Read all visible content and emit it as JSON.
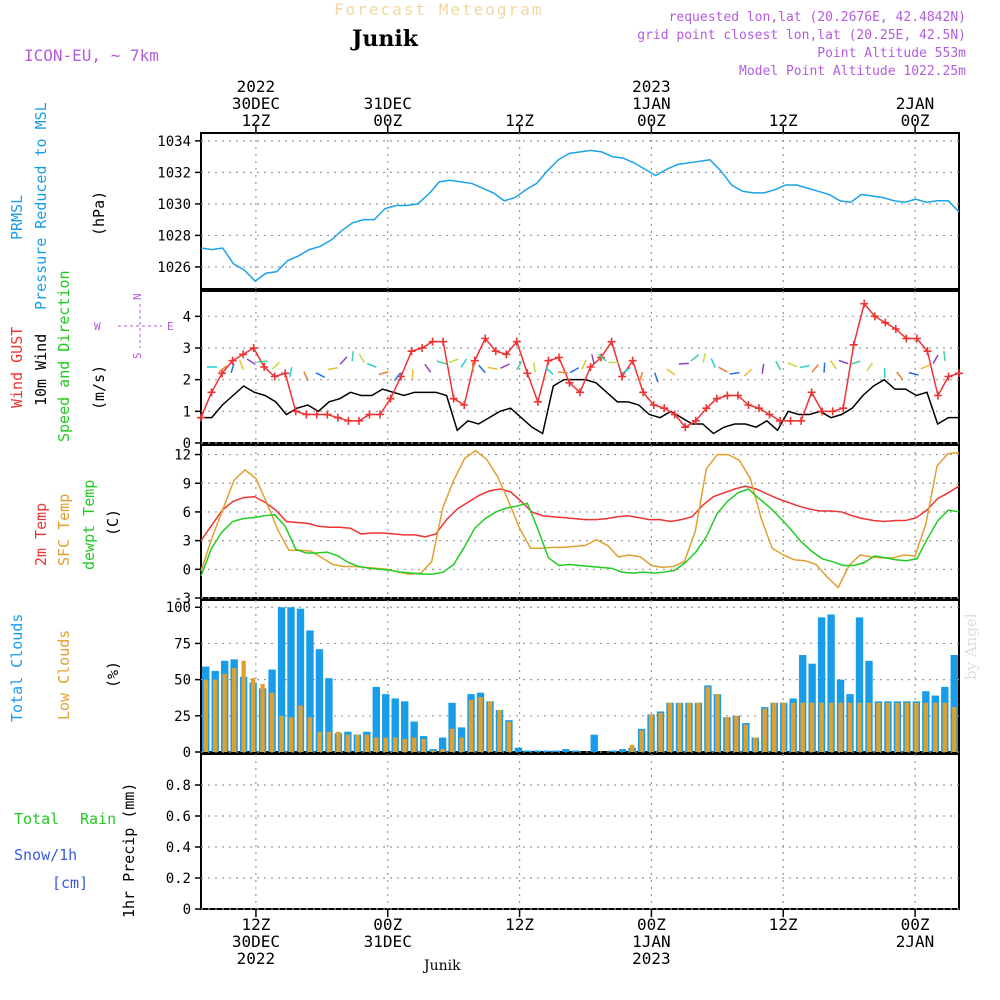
{
  "header": {
    "title": "Forecast Meteogram",
    "location": "Junik",
    "model": "ICON-EU, ~ 7km",
    "requested": "requested lon,lat (20.2676E, 42.4842N)",
    "gridpoint": "grid point closest lon,lat (20.25E, 42.5N)",
    "point_alt": "Point Altitude 553m",
    "model_alt": "Model Point Altitude 1022.25m",
    "credit": "by Angel",
    "footer": "Junik"
  },
  "time_axis": {
    "start_hour": 0,
    "end_hour": 69,
    "top_labels": [
      {
        "h": 5,
        "lines": [
          "2022",
          "30DEC",
          "12Z"
        ]
      },
      {
        "h": 17,
        "lines": [
          "31DEC",
          "00Z"
        ]
      },
      {
        "h": 29,
        "lines": [
          "12Z"
        ]
      },
      {
        "h": 41,
        "lines": [
          "2023",
          "1JAN",
          "00Z"
        ]
      },
      {
        "h": 53,
        "lines": [
          "12Z"
        ]
      },
      {
        "h": 65,
        "lines": [
          "2JAN",
          "00Z"
        ]
      }
    ],
    "bottom_labels": [
      {
        "h": 5,
        "lines": [
          "12Z",
          "30DEC",
          "2022"
        ]
      },
      {
        "h": 17,
        "lines": [
          "00Z",
          "31DEC"
        ]
      },
      {
        "h": 29,
        "lines": [
          "12Z"
        ]
      },
      {
        "h": 41,
        "lines": [
          "00Z",
          "1JAN",
          "2023"
        ]
      },
      {
        "h": 53,
        "lines": [
          "12Z"
        ]
      },
      {
        "h": 65,
        "lines": [
          "00Z",
          "2JAN"
        ]
      }
    ]
  },
  "chart_data": [
    {
      "type": "line",
      "id": "pressure",
      "side_labels": {
        "variable": "PRMSL",
        "description": "Pressure Reduced to MSL",
        "unit": "(hPa)"
      },
      "ylim": [
        1024.6,
        1034.5
      ],
      "yticks": [
        1026,
        1028,
        1030,
        1032,
        1034
      ],
      "series": [
        {
          "name": "PRMSL",
          "color": "#1aa3e8",
          "values": [
            1027.2,
            1027.1,
            1027.2,
            1026.2,
            1025.8,
            1025.1,
            1025.6,
            1025.7,
            1026.4,
            1026.7,
            1027.1,
            1027.3,
            1027.7,
            1028.3,
            1028.8,
            1029.0,
            1029.0,
            1029.7,
            1029.9,
            1029.9,
            1030.0,
            1030.6,
            1031.4,
            1031.5,
            1031.4,
            1031.3,
            1031.0,
            1030.7,
            1030.2,
            1030.4,
            1030.9,
            1031.3,
            1032.1,
            1032.8,
            1033.2,
            1033.3,
            1033.4,
            1033.3,
            1033.0,
            1032.9,
            1032.6,
            1032.2,
            1031.8,
            1032.2,
            1032.5,
            1032.6,
            1032.7,
            1032.8,
            1032.1,
            1031.2,
            1030.8,
            1030.7,
            1030.7,
            1030.9,
            1031.2,
            1031.2,
            1031.0,
            1030.8,
            1030.6,
            1030.2,
            1030.1,
            1030.6,
            1030.5,
            1030.4,
            1030.2,
            1030.1,
            1030.3,
            1030.1,
            1030.2,
            1030.2,
            1029.5
          ]
        }
      ]
    },
    {
      "type": "line",
      "id": "wind",
      "side_labels": {
        "gust": "Wind GUST",
        "wind": "10m Wind",
        "speed_dir": "Speed and Direction",
        "unit": "(m/s)",
        "compass": {
          "n": "N",
          "s": "S",
          "w": "W",
          "e": "E"
        }
      },
      "ylim": [
        0,
        4.8
      ],
      "yticks": [
        0,
        1,
        2,
        3,
        4
      ],
      "series": [
        {
          "name": "10m Wind",
          "color": "#000000",
          "values": [
            0.8,
            0.8,
            1.2,
            1.5,
            1.8,
            1.6,
            1.5,
            1.3,
            0.9,
            1.1,
            1.2,
            1.0,
            1.3,
            1.4,
            1.6,
            1.5,
            1.5,
            1.7,
            1.6,
            1.5,
            1.6,
            1.6,
            1.6,
            1.5,
            0.4,
            0.7,
            0.6,
            0.8,
            1.0,
            1.1,
            0.8,
            0.5,
            0.3,
            1.8,
            2.0,
            2.0,
            2.0,
            1.9,
            1.6,
            1.3,
            1.3,
            1.2,
            0.9,
            0.8,
            1.0,
            0.8,
            0.6,
            0.6,
            0.3,
            0.5,
            0.6,
            0.6,
            0.5,
            0.7,
            0.4,
            1.0,
            0.9,
            0.9,
            1.0,
            0.8,
            0.9,
            1.1,
            1.5,
            1.8,
            2.0,
            1.7,
            1.7,
            1.5,
            1.6,
            0.6,
            0.8,
            0.8
          ]
        },
        {
          "name": "Wind GUST",
          "color": "#ee3333",
          "values": [
            0.8,
            1.6,
            2.2,
            2.6,
            2.8,
            3.0,
            2.4,
            2.1,
            2.2,
            1.0,
            0.9,
            0.9,
            0.9,
            0.8,
            0.7,
            0.7,
            0.9,
            0.9,
            1.4,
            2.1,
            2.9,
            3.0,
            3.2,
            3.2,
            1.4,
            1.2,
            2.6,
            3.3,
            2.9,
            2.8,
            3.2,
            2.2,
            1.3,
            2.6,
            2.7,
            1.9,
            1.6,
            2.4,
            2.7,
            3.2,
            2.1,
            2.6,
            1.6,
            1.2,
            1.1,
            0.9,
            0.5,
            0.7,
            1.1,
            1.4,
            1.5,
            1.5,
            1.2,
            1.1,
            0.9,
            0.7,
            0.7,
            0.7,
            1.6,
            1.0,
            1.0,
            1.1,
            3.1,
            4.4,
            4.0,
            3.8,
            3.6,
            3.3,
            3.3,
            2.9,
            1.5,
            2.1,
            2.2
          ]
        }
      ]
    },
    {
      "type": "line",
      "id": "temperature",
      "side_labels": {
        "t2m": "2m Temp",
        "sfc": "SFC Temp",
        "dewpt": "dewpt Temp",
        "unit": "(C)"
      },
      "ylim": [
        -3,
        13
      ],
      "yticks": [
        -3,
        0,
        3,
        6,
        9,
        12
      ],
      "series": [
        {
          "name": "2m Temp",
          "color": "#ee3333",
          "values": [
            3.0,
            4.6,
            6.2,
            7.1,
            7.5,
            7.6,
            7.0,
            6.2,
            5.0,
            4.9,
            4.8,
            4.5,
            4.4,
            4.4,
            4.3,
            3.7,
            3.8,
            3.8,
            3.7,
            3.6,
            3.6,
            3.4,
            3.7,
            5.2,
            6.3,
            7.0,
            7.7,
            8.2,
            8.4,
            8.1,
            7.1,
            6.0,
            5.6,
            5.5,
            5.4,
            5.3,
            5.2,
            5.2,
            5.3,
            5.5,
            5.6,
            5.4,
            5.2,
            5.2,
            5.0,
            5.2,
            5.5,
            6.7,
            7.6,
            8.0,
            8.4,
            8.7,
            8.4,
            7.9,
            7.4,
            7.0,
            6.6,
            6.3,
            6.1,
            6.1,
            6.0,
            5.6,
            5.3,
            5.1,
            5.0,
            5.1,
            5.1,
            5.4,
            6.2,
            7.4,
            8.0,
            8.7
          ]
        },
        {
          "name": "SFC Temp",
          "color": "#e0a030",
          "values": [
            -0.2,
            3.3,
            6.3,
            9.3,
            10.4,
            9.5,
            6.9,
            4.1,
            2.0,
            2.0,
            1.9,
            1.2,
            0.5,
            0.3,
            0.3,
            0.2,
            0.1,
            0.0,
            -0.3,
            -0.5,
            -0.4,
            0.8,
            6.4,
            9.3,
            11.6,
            12.4,
            11.5,
            9.7,
            7.1,
            4.3,
            2.2,
            2.2,
            2.3,
            2.3,
            2.4,
            2.5,
            3.1,
            2.5,
            1.3,
            1.5,
            1.3,
            0.4,
            0.2,
            0.3,
            0.8,
            4.0,
            10.5,
            12.0,
            12.0,
            11.4,
            9.5,
            5.3,
            2.2,
            1.5,
            1.0,
            0.9,
            0.5,
            -0.8,
            -1.9,
            0.4,
            1.5,
            1.3,
            1.2,
            1.2,
            1.5,
            1.4,
            4.8,
            10.8,
            12.1,
            12.2
          ]
        },
        {
          "name": "dewpt Temp",
          "color": "#22cc22",
          "values": [
            -0.7,
            2.2,
            3.9,
            5.0,
            5.3,
            5.4,
            5.6,
            5.7,
            4.5,
            2.1,
            1.7,
            1.7,
            1.8,
            1.4,
            0.7,
            0.3,
            0.1,
            0.0,
            -0.1,
            -0.3,
            -0.4,
            -0.5,
            -0.5,
            -0.3,
            0.5,
            2.3,
            4.3,
            5.3,
            6.0,
            6.4,
            6.6,
            6.9,
            4.2,
            1.2,
            0.4,
            0.5,
            0.4,
            0.3,
            0.2,
            0.1,
            -0.3,
            -0.4,
            -0.3,
            -0.4,
            -0.3,
            -0.1,
            0.7,
            1.8,
            3.4,
            5.8,
            7.1,
            8.0,
            8.4,
            7.4,
            6.5,
            5.4,
            4.2,
            2.9,
            1.9,
            1.1,
            0.8,
            0.4,
            0.4,
            0.7,
            1.4,
            1.2,
            1.0,
            0.9,
            1.1,
            3.2,
            5.1,
            6.2,
            6.0
          ]
        }
      ]
    },
    {
      "type": "bar",
      "id": "clouds",
      "side_labels": {
        "total": "Total Clouds",
        "low": "Low Clouds",
        "unit": "(%)"
      },
      "ylim": [
        0,
        105
      ],
      "yticks": [
        0,
        25,
        50,
        75,
        100
      ],
      "series": [
        {
          "name": "Total Clouds",
          "color": "#1a9de8",
          "values": [
            59,
            56,
            63,
            64,
            52,
            48,
            44,
            57,
            100,
            100,
            99,
            84,
            71,
            51,
            13,
            14,
            12,
            14,
            45,
            40,
            37,
            35,
            21,
            11,
            2,
            10,
            34,
            17,
            40,
            41,
            35,
            29,
            22,
            3,
            1,
            1,
            1,
            1,
            2,
            1,
            0,
            12,
            0,
            1,
            2,
            3,
            16,
            26,
            28,
            34,
            34,
            34,
            34,
            46,
            40,
            24,
            25,
            20,
            10,
            31,
            34,
            34,
            37,
            67,
            61,
            93,
            95,
            50,
            40,
            93,
            63,
            35,
            35,
            35,
            35,
            35,
            42,
            39,
            45,
            67
          ]
        },
        {
          "name": "Low Clouds",
          "color": "#e0a030",
          "values": [
            50,
            50,
            54,
            58,
            63,
            51,
            47,
            41,
            25,
            24,
            32,
            24,
            14,
            14,
            14,
            12,
            12,
            12,
            10,
            10,
            10,
            9,
            10,
            9,
            1,
            2,
            16,
            10,
            36,
            38,
            35,
            29,
            21,
            0,
            0,
            0,
            0,
            0,
            0,
            0,
            0,
            0,
            0,
            0,
            0,
            5,
            15,
            26,
            27,
            34,
            34,
            34,
            34,
            45,
            40,
            24,
            25,
            19,
            10,
            30,
            34,
            34,
            34,
            34,
            34,
            34,
            34,
            34,
            34,
            34,
            34,
            34,
            34,
            34,
            34,
            34,
            34,
            34,
            34,
            31
          ]
        }
      ]
    },
    {
      "type": "line",
      "id": "precip",
      "side_labels": {
        "total": "Total",
        "rain": "Rain",
        "snow": "Snow/1h",
        "snow_unit": "[cm]",
        "precip": "1hr Precip (mm)"
      },
      "ylim": [
        0,
        1.0
      ],
      "yticks": [
        0,
        0.2,
        0.4,
        0.6,
        0.8
      ],
      "series": [
        {
          "name": "Total Rain",
          "color": "#22cc22",
          "values": []
        },
        {
          "name": "Snow/1h",
          "color": "#3a5ae0",
          "values": []
        }
      ]
    }
  ]
}
